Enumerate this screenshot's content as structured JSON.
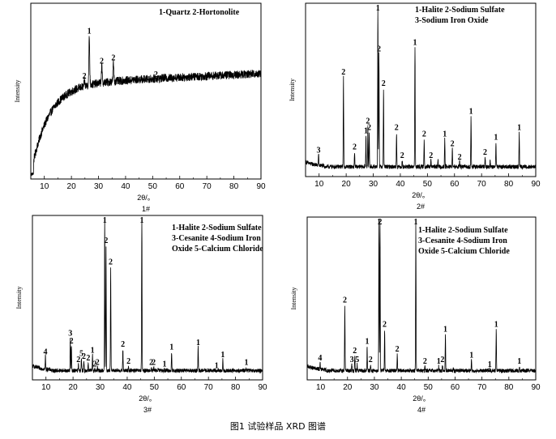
{
  "caption": "图1  试验样品 XRD 图谱",
  "chart_data": [
    {
      "id": "p1",
      "type": "line",
      "sample_label": "1#",
      "legend": [
        "1-Quartz 2-Hortonolite"
      ],
      "xlabel": "2θ/。",
      "ylabel": "Intensity",
      "xlim": [
        5,
        90
      ],
      "xticks": [
        10,
        20,
        30,
        40,
        50,
        60,
        70,
        80,
        90
      ],
      "pattern": "amorphous",
      "peaks": [
        {
          "x": 24.8,
          "y": 0.59,
          "label": "2"
        },
        {
          "x": 26.6,
          "y": 0.86,
          "label": "1"
        },
        {
          "x": 31.2,
          "y": 0.68,
          "label": "2"
        },
        {
          "x": 35.5,
          "y": 0.7,
          "label": "2"
        },
        {
          "x": 51.2,
          "y": 0.6,
          "label": "2"
        }
      ]
    },
    {
      "id": "p2",
      "type": "line",
      "sample_label": "2#",
      "legend": [
        "1-Halite 2-Sodium Sulfate",
        "3-Sodium Iron Oxide"
      ],
      "xlabel": "2θ/。",
      "ylabel": "Intensity",
      "xlim": [
        5,
        90
      ],
      "xticks": [
        10,
        20,
        30,
        40,
        50,
        60,
        70,
        80,
        90
      ],
      "pattern": "crystalline",
      "peaks": [
        {
          "x": 9.8,
          "y": 0.1,
          "label": "3"
        },
        {
          "x": 19.0,
          "y": 0.58,
          "label": "2"
        },
        {
          "x": 23.1,
          "y": 0.12,
          "label": "2"
        },
        {
          "x": 27.3,
          "y": 0.22,
          "label": "1"
        },
        {
          "x": 28.0,
          "y": 0.28,
          "label": "2"
        },
        {
          "x": 28.5,
          "y": 0.24,
          "label": "2"
        },
        {
          "x": 31.7,
          "y": 1.0,
          "label": "1"
        },
        {
          "x": 32.1,
          "y": 0.72,
          "label": "2"
        },
        {
          "x": 33.8,
          "y": 0.51,
          "label": "2"
        },
        {
          "x": 38.6,
          "y": 0.24,
          "label": "2"
        },
        {
          "x": 40.7,
          "y": 0.07,
          "label": "2"
        },
        {
          "x": 45.4,
          "y": 0.76,
          "label": "1"
        },
        {
          "x": 48.8,
          "y": 0.2,
          "label": "2"
        },
        {
          "x": 51.3,
          "y": 0.07,
          "label": "2"
        },
        {
          "x": 53.9,
          "y": 0.08,
          "label": ""
        },
        {
          "x": 56.4,
          "y": 0.2,
          "label": "1"
        },
        {
          "x": 59.2,
          "y": 0.14,
          "label": "2"
        },
        {
          "x": 61.9,
          "y": 0.06,
          "label": "2"
        },
        {
          "x": 66.1,
          "y": 0.34,
          "label": "1"
        },
        {
          "x": 71.3,
          "y": 0.09,
          "label": "2"
        },
        {
          "x": 73.2,
          "y": 0.07,
          "label": ""
        },
        {
          "x": 75.3,
          "y": 0.18,
          "label": "1"
        },
        {
          "x": 83.9,
          "y": 0.24,
          "label": "1"
        }
      ]
    },
    {
      "id": "p3",
      "type": "line",
      "sample_label": "3#",
      "legend": [
        "1-Halite 2-Sodium Sulfate",
        "3-Cesanite 4-Sodium Iron",
        "Oxide 5-Calcium Chloride"
      ],
      "xlabel": "2θ/。",
      "ylabel": "Intensity",
      "xlim": [
        5,
        90
      ],
      "xticks": [
        10,
        20,
        30,
        40,
        50,
        60,
        70,
        80,
        90
      ],
      "pattern": "crystalline",
      "peaks": [
        {
          "x": 9.8,
          "y": 0.12,
          "label": "4"
        },
        {
          "x": 19.0,
          "y": 0.24,
          "label": "3"
        },
        {
          "x": 19.4,
          "y": 0.19,
          "label": "2"
        },
        {
          "x": 22.0,
          "y": 0.07,
          "label": "2"
        },
        {
          "x": 23.1,
          "y": 0.11,
          "label": "5"
        },
        {
          "x": 24.0,
          "y": 0.09,
          "label": "2"
        },
        {
          "x": 25.6,
          "y": 0.08,
          "label": "2"
        },
        {
          "x": 27.2,
          "y": 0.13,
          "label": "1"
        },
        {
          "x": 28.0,
          "y": 0.04,
          "label": "2"
        },
        {
          "x": 29.0,
          "y": 0.05,
          "label": "2"
        },
        {
          "x": 31.7,
          "y": 1.0,
          "label": "1"
        },
        {
          "x": 32.2,
          "y": 0.84,
          "label": "2"
        },
        {
          "x": 33.9,
          "y": 0.7,
          "label": "2"
        },
        {
          "x": 38.4,
          "y": 0.17,
          "label": "2"
        },
        {
          "x": 40.5,
          "y": 0.06,
          "label": "2"
        },
        {
          "x": 45.4,
          "y": 1.0,
          "label": "1"
        },
        {
          "x": 48.9,
          "y": 0.05,
          "label": "2"
        },
        {
          "x": 49.8,
          "y": 0.05,
          "label": "2"
        },
        {
          "x": 51.4,
          "y": 0.04,
          "label": ""
        },
        {
          "x": 53.8,
          "y": 0.04,
          "label": "1"
        },
        {
          "x": 56.4,
          "y": 0.15,
          "label": "1"
        },
        {
          "x": 66.2,
          "y": 0.18,
          "label": "1"
        },
        {
          "x": 73.0,
          "y": 0.03,
          "label": "1"
        },
        {
          "x": 75.3,
          "y": 0.1,
          "label": "1"
        },
        {
          "x": 84.0,
          "y": 0.05,
          "label": "1"
        }
      ]
    },
    {
      "id": "p4",
      "type": "line",
      "sample_label": "4#",
      "legend": [
        "1-Halite 2-Sodium Sulfate",
        "3-Cesanite 4-Sodium Iron",
        "Oxide 5-Calcium Chloride"
      ],
      "xlabel": "2θ/。",
      "ylabel": "Intensity",
      "xlim": [
        5,
        90
      ],
      "xticks": [
        10,
        20,
        30,
        40,
        50,
        60,
        70,
        80,
        90
      ],
      "pattern": "crystalline",
      "peaks": [
        {
          "x": 9.8,
          "y": 0.08,
          "label": "4"
        },
        {
          "x": 19.0,
          "y": 0.46,
          "label": "2"
        },
        {
          "x": 21.6,
          "y": 0.07,
          "label": "3"
        },
        {
          "x": 22.7,
          "y": 0.13,
          "label": "2"
        },
        {
          "x": 23.6,
          "y": 0.07,
          "label": "5"
        },
        {
          "x": 27.3,
          "y": 0.19,
          "label": "1"
        },
        {
          "x": 28.6,
          "y": 0.07,
          "label": "2"
        },
        {
          "x": 31.7,
          "y": 1.0,
          "label": "1"
        },
        {
          "x": 32.1,
          "y": 0.99,
          "label": "2"
        },
        {
          "x": 33.8,
          "y": 0.3,
          "label": "2"
        },
        {
          "x": 38.5,
          "y": 0.14,
          "label": "2"
        },
        {
          "x": 45.4,
          "y": 1.0,
          "label": "1"
        },
        {
          "x": 48.8,
          "y": 0.06,
          "label": "2"
        },
        {
          "x": 53.9,
          "y": 0.06,
          "label": "1"
        },
        {
          "x": 55.3,
          "y": 0.07,
          "label": "2"
        },
        {
          "x": 56.4,
          "y": 0.27,
          "label": "1"
        },
        {
          "x": 59.3,
          "y": 0.04,
          "label": ""
        },
        {
          "x": 66.1,
          "y": 0.1,
          "label": "1"
        },
        {
          "x": 72.9,
          "y": 0.04,
          "label": "1"
        },
        {
          "x": 75.3,
          "y": 0.3,
          "label": "1"
        },
        {
          "x": 83.9,
          "y": 0.06,
          "label": "1"
        }
      ]
    }
  ]
}
